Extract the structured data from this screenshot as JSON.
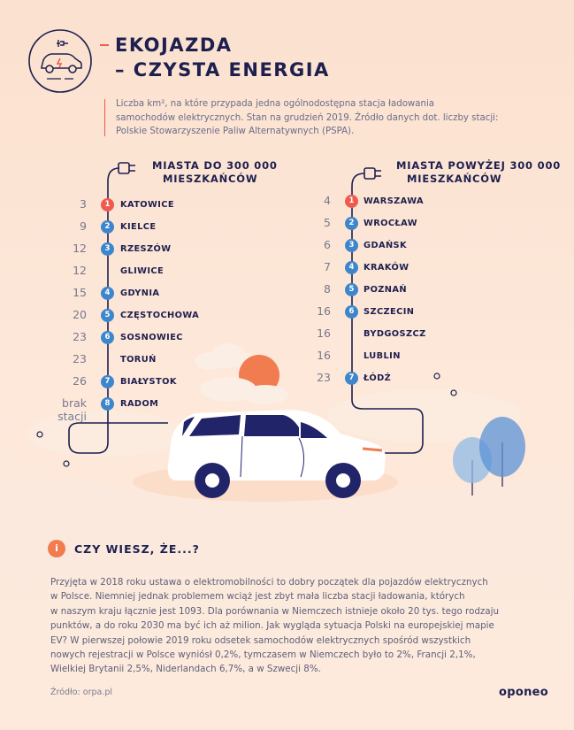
{
  "header": {
    "title_line1": "EKOJAZDA",
    "title_line2": "– CZYSTA ENERGIA",
    "icon": "electric-car-icon"
  },
  "intro": {
    "line1": "Liczba km², na które przypada jedna ogólnodostępna stacja ładowania",
    "line2": "samochodów elektrycznych. Stan na grudzień 2019. Źródło danych dot. liczby stacji:",
    "line3": "Polskie Stowarzyszenie Paliw Alternatywnych (PSPA)."
  },
  "small_cities": {
    "heading_line1": "MIASTA DO 300 000",
    "heading_line2": "MIESZKAŃCÓW",
    "rows": [
      {
        "value": "3",
        "rank": "1",
        "city": "KATOWICE",
        "highlight": true
      },
      {
        "value": "9",
        "rank": "2",
        "city": "KIELCE",
        "highlight": false
      },
      {
        "value": "12",
        "rank": "3",
        "city": "RZESZÓW",
        "highlight": false
      },
      {
        "value": "12",
        "rank": "",
        "city": "GLIWICE",
        "highlight": false
      },
      {
        "value": "15",
        "rank": "4",
        "city": "GDYNIA",
        "highlight": false
      },
      {
        "value": "20",
        "rank": "5",
        "city": "CZĘSTOCHOWA",
        "highlight": false
      },
      {
        "value": "23",
        "rank": "6",
        "city": "SOSNOWIEC",
        "highlight": false
      },
      {
        "value": "23",
        "rank": "",
        "city": "TORUŃ",
        "highlight": false
      },
      {
        "value": "26",
        "rank": "7",
        "city": "BIAŁYSTOK",
        "highlight": false
      },
      {
        "value": "brak stacji",
        "rank": "8",
        "city": "RADOM",
        "highlight": false
      }
    ]
  },
  "large_cities": {
    "heading_line1": "MIASTA POWYŻEJ 300 000",
    "heading_line2": "MIESZKAŃCÓW",
    "rows": [
      {
        "value": "4",
        "rank": "1",
        "city": "WARSZAWA",
        "highlight": true
      },
      {
        "value": "5",
        "rank": "2",
        "city": "WROCŁAW",
        "highlight": false
      },
      {
        "value": "6",
        "rank": "3",
        "city": "GDAŃSK",
        "highlight": false
      },
      {
        "value": "7",
        "rank": "4",
        "city": "KRAKÓW",
        "highlight": false
      },
      {
        "value": "8",
        "rank": "5",
        "city": "POZNAŃ",
        "highlight": false
      },
      {
        "value": "16",
        "rank": "6",
        "city": "SZCZECIN",
        "highlight": false
      },
      {
        "value": "16",
        "rank": "",
        "city": "BYDGOSZCZ",
        "highlight": false
      },
      {
        "value": "16",
        "rank": "",
        "city": "LUBLIN",
        "highlight": false
      },
      {
        "value": "23",
        "rank": "7",
        "city": "ŁÓDŹ",
        "highlight": false
      }
    ]
  },
  "info": {
    "icon_label": "i",
    "heading": "CZY WIESZ, ŻE...?",
    "lines": [
      "Przyjęta w 2018 roku ustawa o elektromobilności to dobry początek dla pojazdów elektrycznych",
      "w Polsce. Niemniej jednak problemem wciąż jest zbyt mała liczba stacji ładowania, których",
      "w naszym kraju łącznie jest 1093. Dla porównania w Niemczech istnieje około 20 tys. tego rodzaju",
      "punktów, a do roku 2030 ma być ich aż milion. Jak wygląda sytuacja Polski na europejskiej mapie",
      "EV? W pierwszej połowie 2019 roku odsetek samochodów elektrycznych spośród wszystkich",
      "nowych rejestracji w Polsce wyniósł 0,2%, tymczasem w Niemczech było to 2%, Francji 2,1%,",
      "Wielkiej Brytanii 2,5%, Niderlandach 6,7%, a w Szwecji 8%."
    ]
  },
  "footer": {
    "source": "Źródło: orpa.pl",
    "brand": "oponeo"
  },
  "colors": {
    "navy": "#1d1f4e",
    "accent_red": "#ef5a4f",
    "accent_blue": "#3d86cc",
    "sun": "#f07c50",
    "background": "#fbe3d2"
  }
}
